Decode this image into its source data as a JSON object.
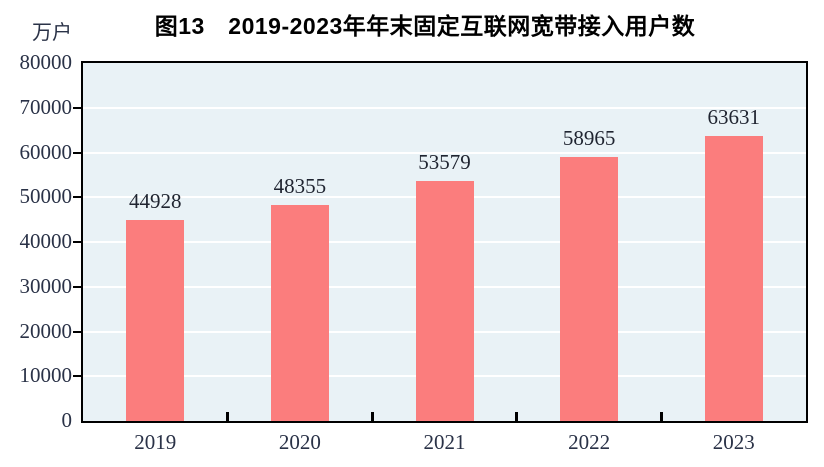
{
  "figure": {
    "title": "图13　2019-2023年年末固定互联网宽带接入用户数",
    "unit_label": "万户"
  },
  "chart_data": {
    "type": "bar",
    "title": "图13　2019-2023年年末固定互联网宽带接入用户数",
    "unit": "万户",
    "categories": [
      "2019",
      "2020",
      "2021",
      "2022",
      "2023"
    ],
    "values": [
      44928,
      48355,
      53579,
      58965,
      63631
    ],
    "xlabel": "",
    "ylabel": "万户",
    "ylim": [
      0,
      80000
    ],
    "ytick_interval": 10000,
    "yticks": [
      0,
      10000,
      20000,
      30000,
      40000,
      50000,
      60000,
      70000,
      80000
    ],
    "grid": true,
    "legend_position": "none",
    "data_labels": true,
    "colors": {
      "bar_fill": "#FB7D7D",
      "plot_background": "#E9F2F6",
      "gridline": "#FFFFFF",
      "axis_line": "#000000",
      "tick_text": "#2A3247",
      "value_text": "#1F2430",
      "title_text": "#000000"
    }
  }
}
